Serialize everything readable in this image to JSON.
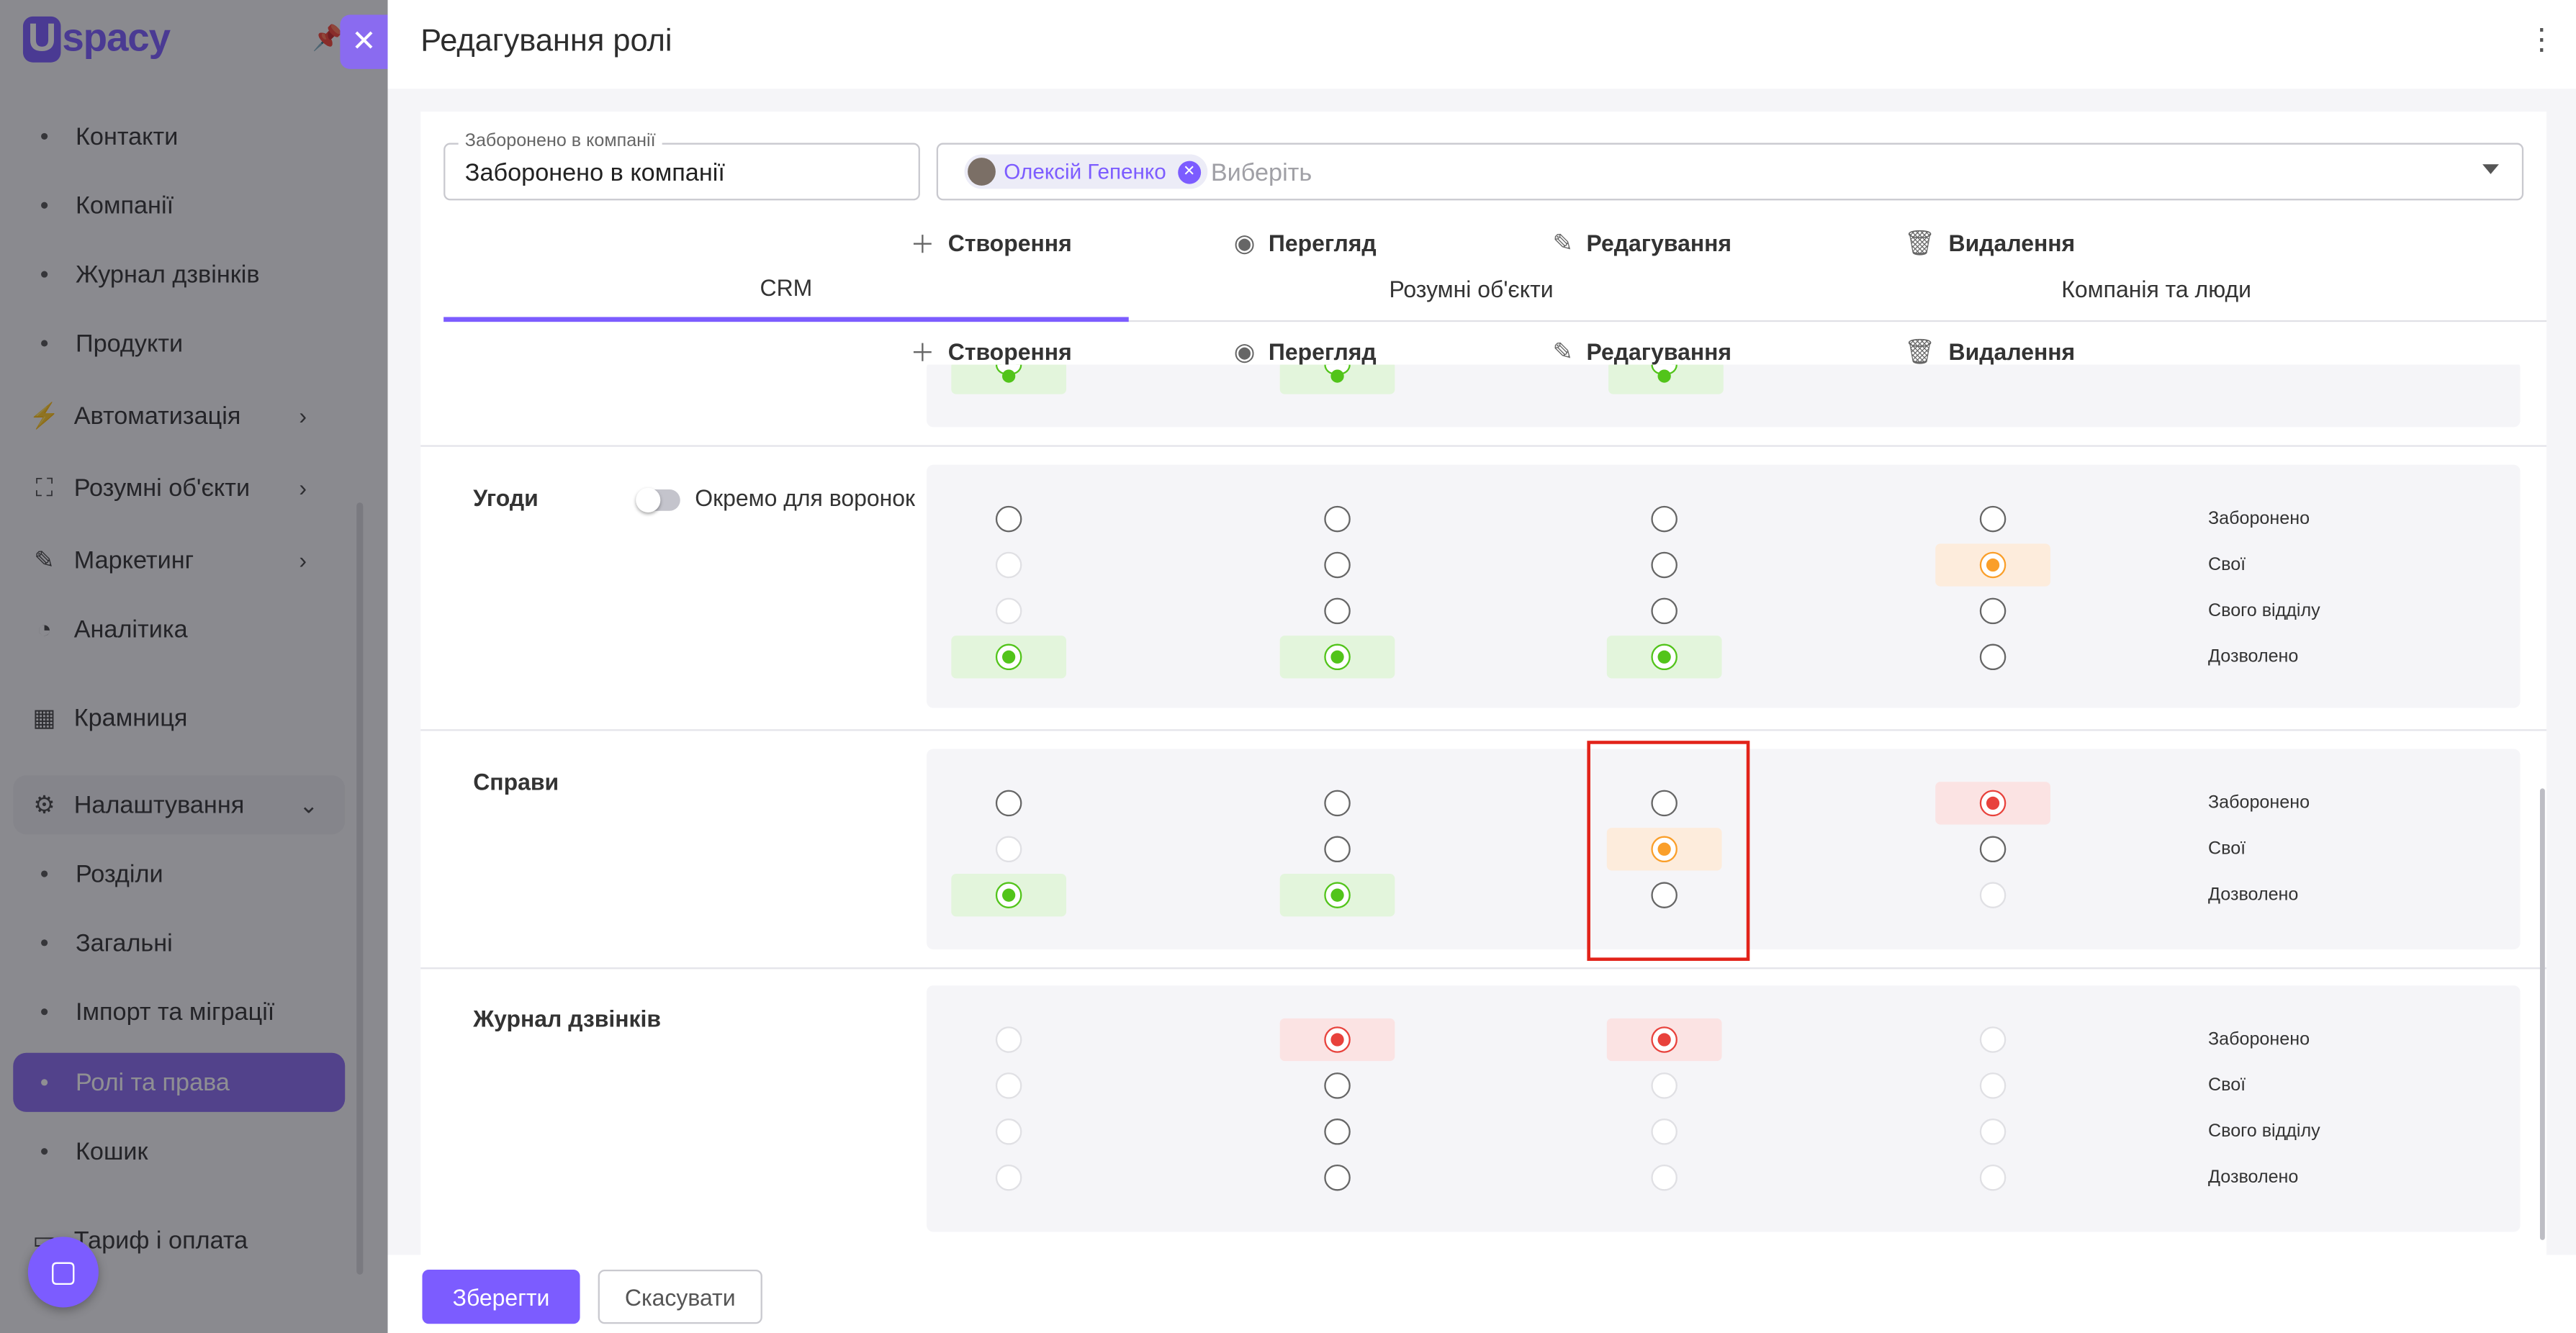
{
  "app": {
    "logo_u": "U",
    "logo_rest": "spacy"
  },
  "sidebar": {
    "items": [
      {
        "label": "Контакти"
      },
      {
        "label": "Компанії"
      },
      {
        "label": "Журнал дзвінків"
      },
      {
        "label": "Продукти"
      },
      {
        "label": "Автоматизація"
      },
      {
        "label": "Розумні об'єкти"
      },
      {
        "label": "Маркетинг"
      },
      {
        "label": "Аналітика"
      },
      {
        "label": "Крамниця"
      },
      {
        "label": "Налаштування"
      },
      {
        "label": "Розділи"
      },
      {
        "label": "Загальні"
      },
      {
        "label": "Імпорт та міграції"
      },
      {
        "label": "Ролі та права"
      },
      {
        "label": "Кошик"
      },
      {
        "label": "Тариф і оплата"
      }
    ]
  },
  "panel": {
    "title": "Редагування ролі",
    "role_field": {
      "label": "Заборонено в компанії",
      "value": "Заборонено в компанії"
    },
    "users_field": {
      "chip": "Олексій Гепенко",
      "placeholder": "Виберіть"
    },
    "tabs": [
      {
        "label": "CRM"
      },
      {
        "label": "Розумні об'єкти"
      },
      {
        "label": "Компанія та люди"
      }
    ],
    "columns": [
      {
        "label": "Створення"
      },
      {
        "label": "Перегляд"
      },
      {
        "label": "Редагування"
      },
      {
        "label": "Видалення"
      }
    ],
    "sections": [
      {
        "title": "Угоди",
        "toggle_label": "Окремо для воронок",
        "toggle_on": false,
        "levels": [
          "Заборонено",
          "Свої",
          "Свого відділу",
          "Дозволено"
        ],
        "selected": {
          "create": "Дозволено",
          "view": "Дозволено",
          "edit": "Дозволено",
          "delete": "Свої"
        }
      },
      {
        "title": "Справи",
        "levels": [
          "Заборонено",
          "Свої",
          "Дозволено"
        ],
        "selected": {
          "create": "Дозволено",
          "view": "Дозволено",
          "edit": "Свої",
          "delete": "Заборонено"
        }
      },
      {
        "title": "Журнал дзвінків",
        "levels": [
          "Заборонено",
          "Свої",
          "Свого відділу",
          "Дозволено"
        ],
        "selected": {
          "create": null,
          "view": "Заборонено",
          "edit": "Заборонено",
          "delete": null
        }
      }
    ],
    "save_label": "Зберегти",
    "cancel_label": "Скасувати"
  },
  "colors": {
    "accent": "#7c5cff",
    "allowed": "#52c41a",
    "own": "#fa9f2a",
    "forbidden": "#e8423c",
    "highlight_box": "#e2231a"
  }
}
